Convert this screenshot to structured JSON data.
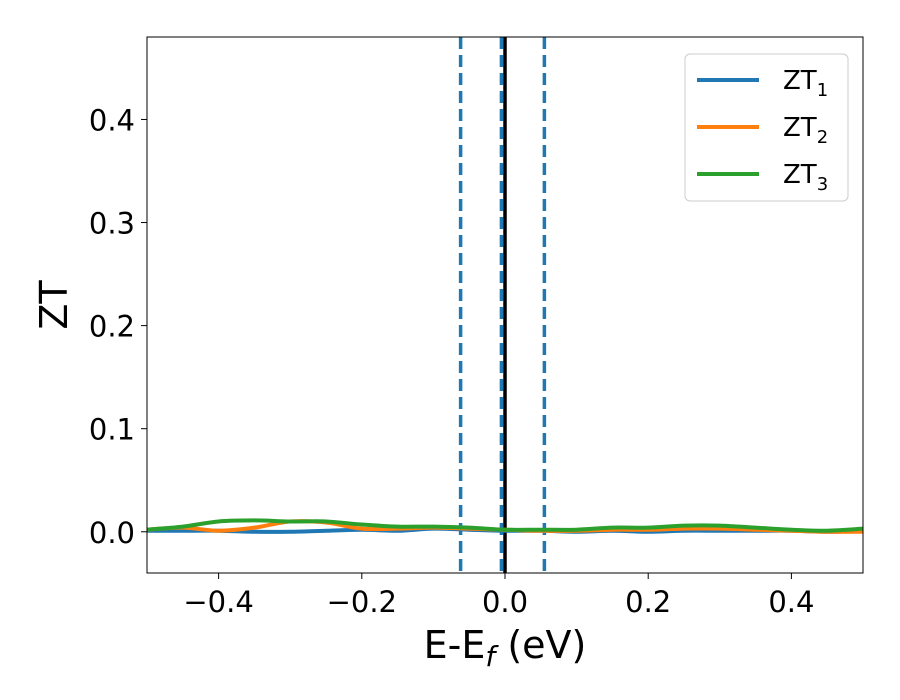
{
  "chart_data": {
    "type": "line",
    "title": "",
    "xlabel": {
      "main": "E-E",
      "sub": "f",
      "tail": " (eV)"
    },
    "ylabel": "ZT",
    "xlim": [
      -0.5,
      0.5
    ],
    "ylim": [
      -0.04,
      0.48
    ],
    "x_ticks": [
      -0.4,
      -0.2,
      0.0,
      0.2,
      0.4
    ],
    "x_tick_labels": [
      "−0.4",
      "−0.2",
      "0.0",
      "0.2",
      "0.4"
    ],
    "y_ticks": [
      0.0,
      0.1,
      0.2,
      0.3,
      0.4
    ],
    "y_tick_labels": [
      "0.0",
      "0.1",
      "0.2",
      "0.3",
      "0.4"
    ],
    "grid": false,
    "legend_position": "top-right",
    "vertical_lines": [
      {
        "x": -0.062,
        "style": "dashed",
        "color": "#1f77b4"
      },
      {
        "x": -0.005,
        "style": "dashed",
        "color": "#1f77b4"
      },
      {
        "x": 0.055,
        "style": "dashed",
        "color": "#1f77b4"
      },
      {
        "x": 0.0,
        "style": "solid",
        "color": "#000000"
      }
    ],
    "x": [
      -0.5,
      -0.45,
      -0.4,
      -0.35,
      -0.3,
      -0.25,
      -0.2,
      -0.15,
      -0.1,
      -0.05,
      0.0,
      0.05,
      0.1,
      0.15,
      0.2,
      0.25,
      0.3,
      0.35,
      0.4,
      0.45,
      0.5
    ],
    "series": [
      {
        "name": "ZT",
        "sub": "1",
        "color": "#1f77b4",
        "values": [
          0.001,
          0.001,
          0.001,
          0.0,
          0.0,
          0.001,
          0.002,
          0.001,
          0.003,
          0.002,
          0.001,
          0.001,
          0.0,
          0.001,
          0.0,
          0.001,
          0.001,
          0.001,
          0.001,
          0.0,
          0.001
        ]
      },
      {
        "name": "ZT",
        "sub": "2",
        "color": "#ff7f0e",
        "values": [
          0.002,
          0.004,
          0.001,
          0.004,
          0.01,
          0.009,
          0.003,
          0.003,
          0.004,
          0.003,
          0.002,
          0.001,
          0.001,
          0.002,
          0.002,
          0.003,
          0.003,
          0.002,
          0.001,
          0.0,
          0.0
        ]
      },
      {
        "name": "ZT",
        "sub": "3",
        "color": "#2ca02c",
        "values": [
          0.002,
          0.005,
          0.01,
          0.011,
          0.01,
          0.01,
          0.007,
          0.005,
          0.005,
          0.004,
          0.002,
          0.002,
          0.002,
          0.004,
          0.004,
          0.006,
          0.006,
          0.004,
          0.002,
          0.001,
          0.003
        ]
      }
    ]
  }
}
